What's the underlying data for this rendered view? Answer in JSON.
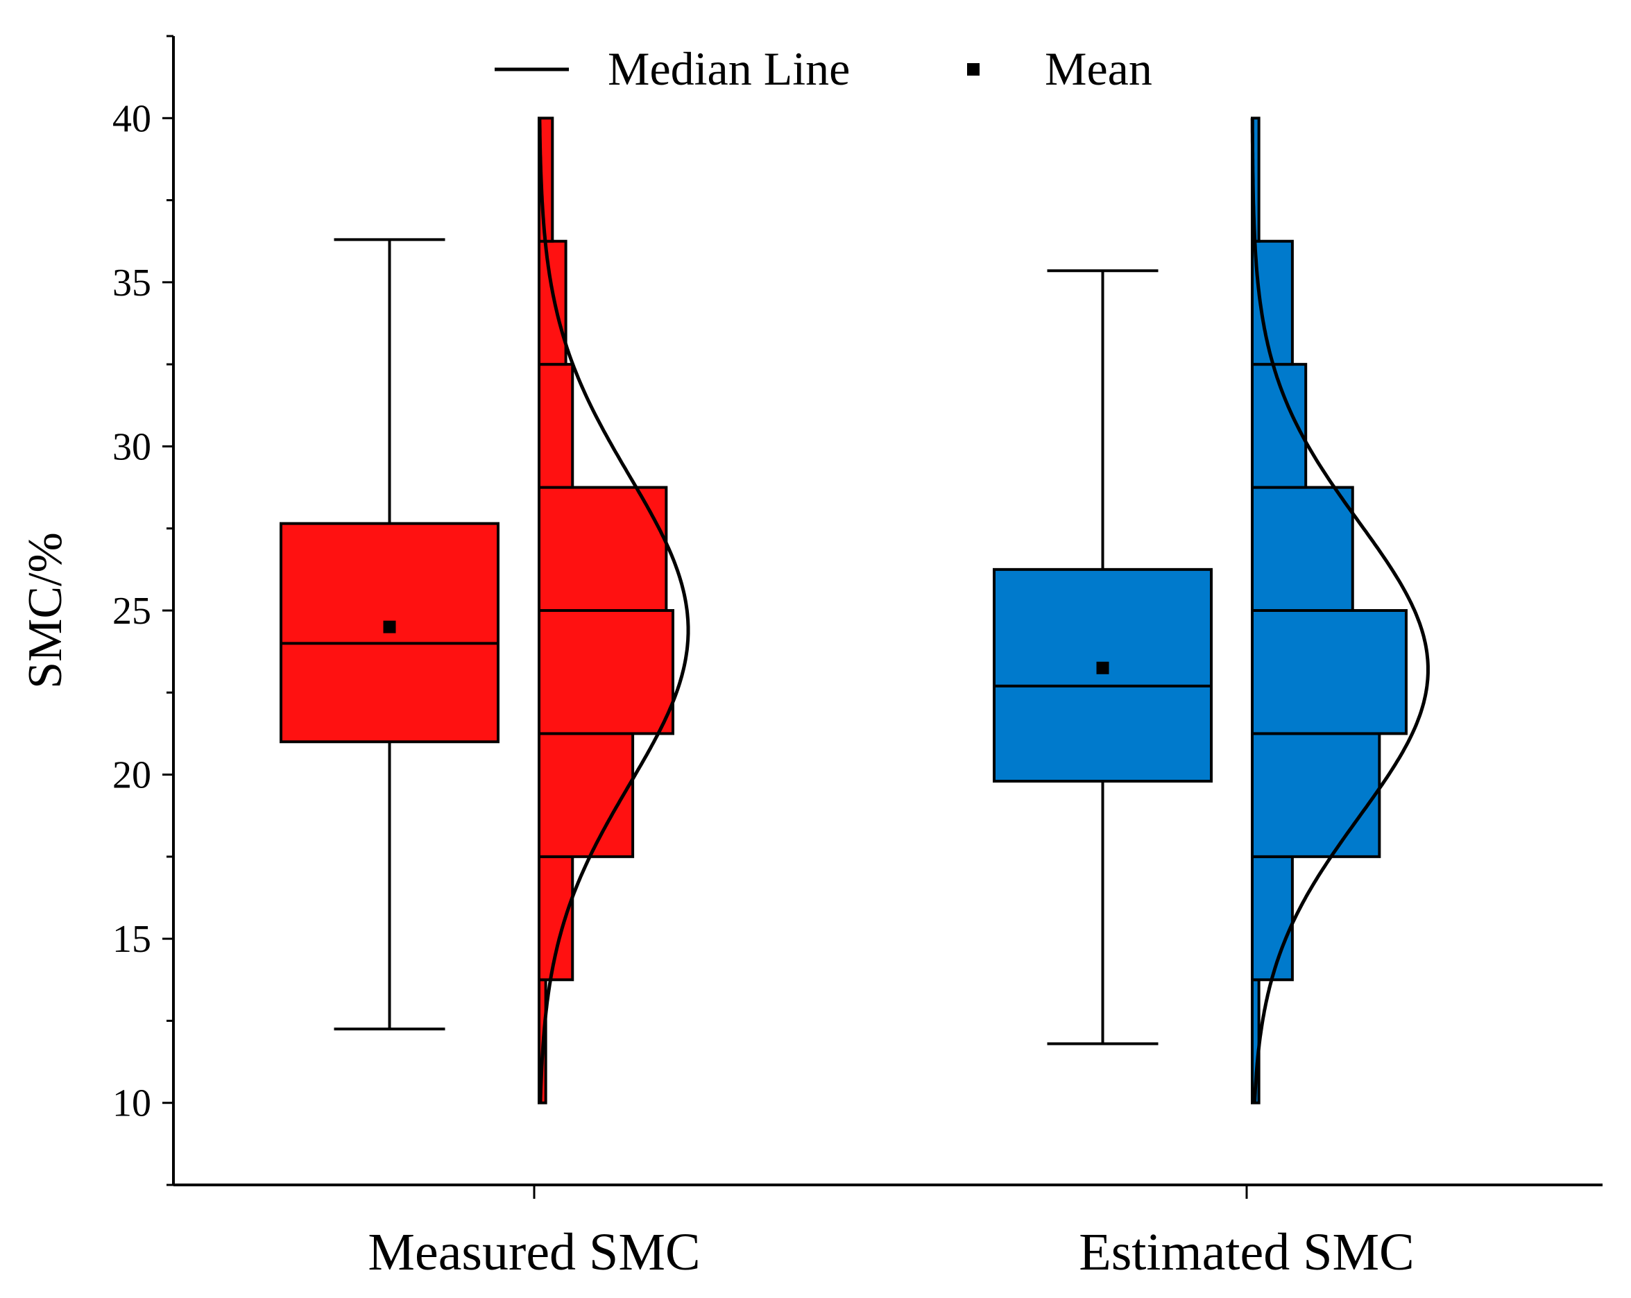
{
  "chart_data": {
    "type": "box",
    "title": "",
    "xlabel": "",
    "ylabel": "SMC/%",
    "ylim": [
      7.5,
      42.5
    ],
    "yticks": [
      10,
      15,
      20,
      25,
      30,
      35,
      40
    ],
    "ytick_labels": [
      "10",
      "15",
      "20",
      "25",
      "30",
      "35",
      "40"
    ],
    "legend": [
      {
        "label": "Median Line",
        "marker": "line"
      },
      {
        "label": "Mean",
        "marker": "square"
      }
    ],
    "legend_position": "top-center",
    "bin_edges": [
      10,
      13.75,
      17.5,
      21.25,
      25,
      28.75,
      32.5,
      36.25,
      40
    ],
    "series": [
      {
        "name": "Measured SMC",
        "color": "#ff1111",
        "box": {
          "whisker_low": 12.25,
          "q1": 21.0,
          "median": 24.0,
          "q3": 27.65,
          "whisker_high": 36.3,
          "mean": 24.5
        },
        "histogram_counts": [
          1,
          5,
          14,
          20,
          19,
          5,
          4,
          2
        ],
        "normal": {
          "mean": 24.4,
          "sd": 4.7
        }
      },
      {
        "name": "Estimated SMC",
        "color": "#007acc",
        "box": {
          "whisker_low": 11.8,
          "q1": 19.8,
          "median": 22.7,
          "q3": 26.25,
          "whisker_high": 35.35,
          "mean": 23.25
        },
        "histogram_counts": [
          1,
          6,
          19,
          23,
          15,
          8,
          6,
          1
        ],
        "normal": {
          "mean": 23.2,
          "sd": 4.5
        }
      }
    ]
  }
}
